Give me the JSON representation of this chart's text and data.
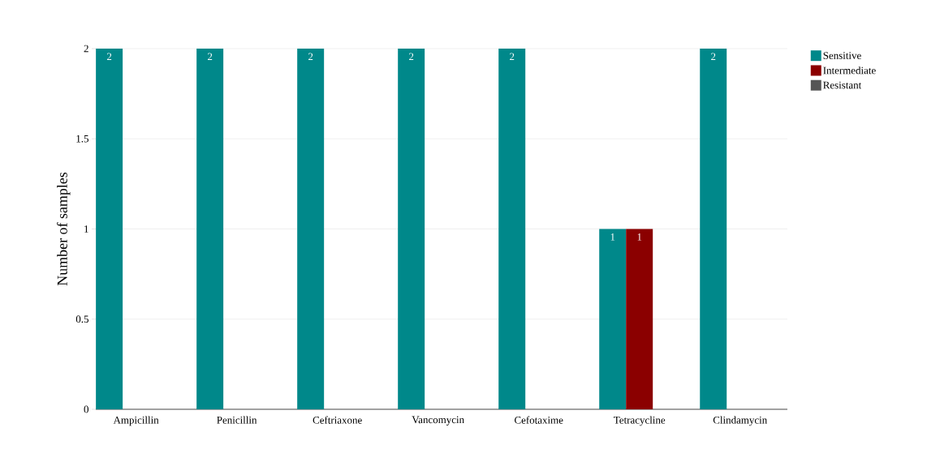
{
  "chart_data": {
    "type": "bar",
    "ylabel": "Number of samples",
    "categories": [
      "Ampicillin",
      "Penicillin",
      "Ceftriaxone",
      "Vancomycin",
      "Cefotaxime",
      "Tetracycline",
      "Clindamycin"
    ],
    "series": [
      {
        "name": "Sensitive",
        "color": "#00888a",
        "values": [
          2,
          2,
          2,
          2,
          2,
          1,
          2
        ]
      },
      {
        "name": "Intermediate",
        "color": "#8b0000",
        "values": [
          null,
          null,
          null,
          null,
          null,
          1,
          null
        ]
      },
      {
        "name": "Resistant",
        "color": "#555555",
        "values": [
          null,
          null,
          null,
          null,
          null,
          null,
          null
        ]
      }
    ],
    "ylim": [
      0,
      2
    ],
    "yticks": [
      0,
      0.5,
      1,
      1.5,
      2
    ],
    "grid": "y",
    "legend": "top right",
    "data_labels": true
  }
}
